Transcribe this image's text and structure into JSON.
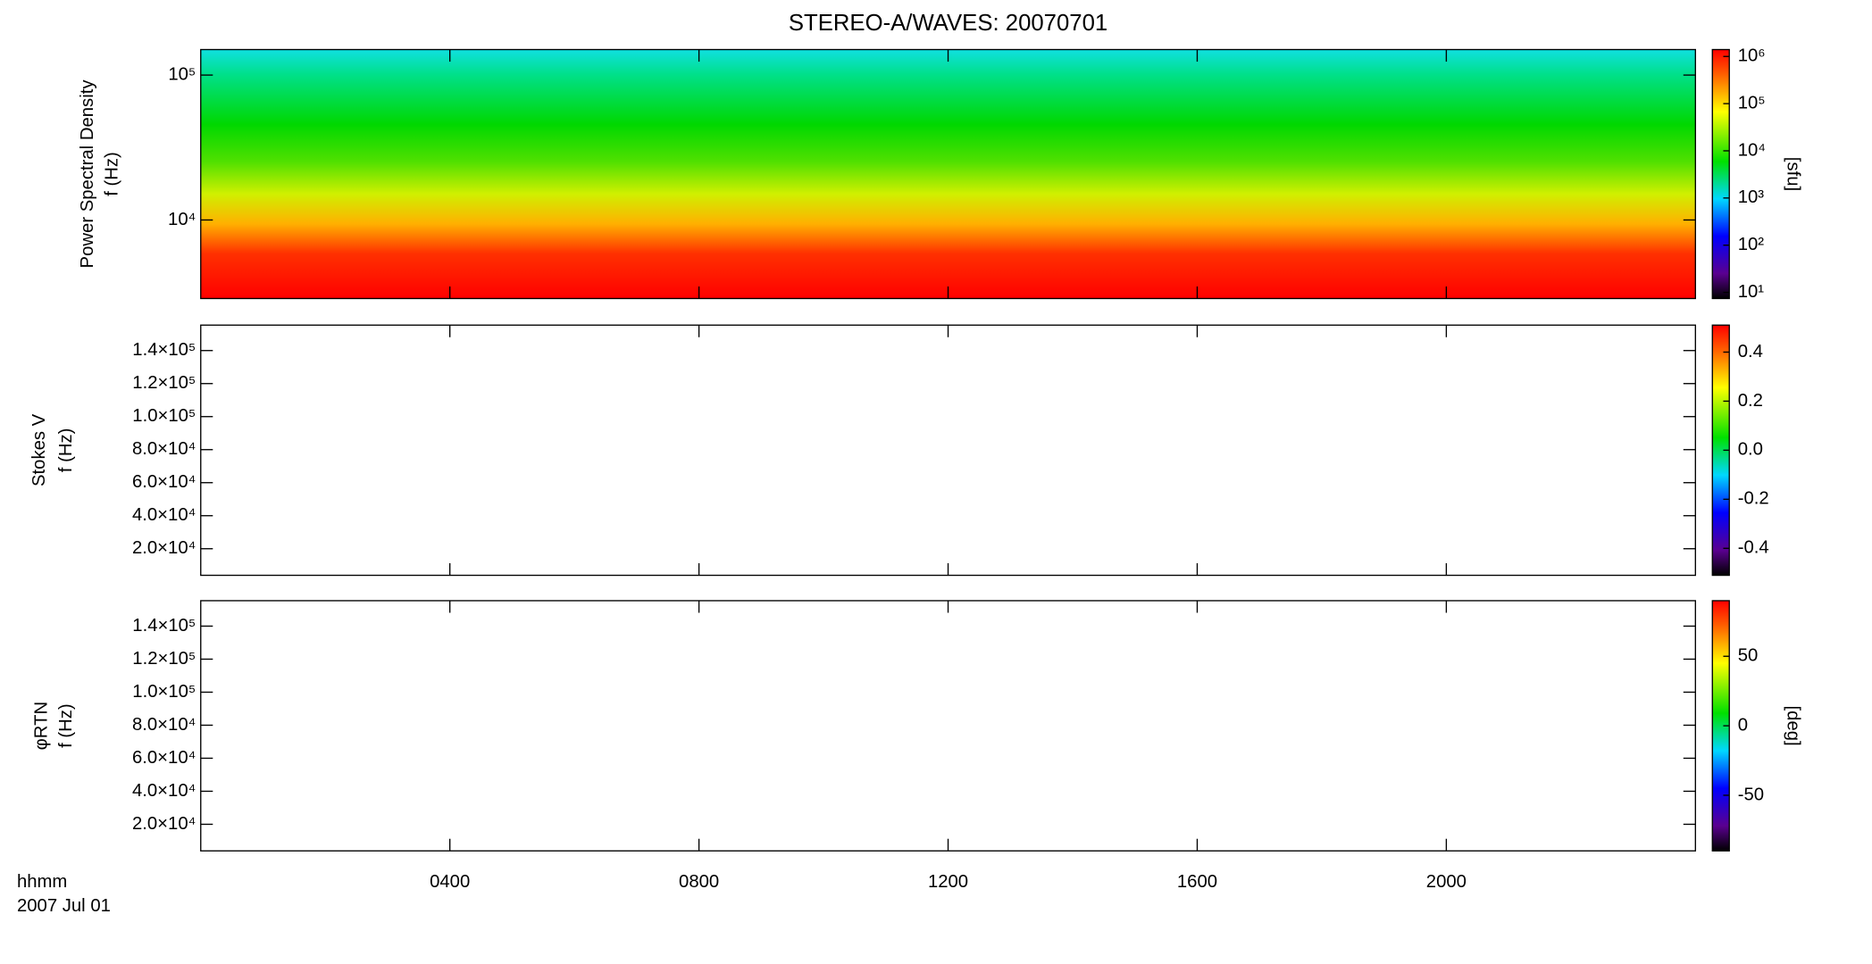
{
  "chart_data": [
    {
      "type": "spectrogram",
      "title": "STEREO-A/WAVES: 20070701",
      "y_label": [
        "Power Spectral Density",
        "f (Hz)"
      ],
      "y_log": true,
      "ylim": [
        2870,
        150000
      ],
      "yticks": [
        {
          "value": 10000,
          "label": "10⁴"
        },
        {
          "value": 100000,
          "label": "10⁵"
        }
      ],
      "colorbar": {
        "label": "[sfu]",
        "log": true,
        "lim": [
          7.4,
          1400000
        ],
        "ticks": [
          {
            "value": 10,
            "label": "10¹"
          },
          {
            "value": 100,
            "label": "10²"
          },
          {
            "value": 1000,
            "label": "10³"
          },
          {
            "value": 10000,
            "label": "10⁴"
          },
          {
            "value": 100000,
            "label": "10⁵"
          },
          {
            "value": 1000000,
            "label": "10⁶"
          }
        ]
      }
    },
    {
      "type": "spectrogram",
      "y_label": [
        "Stokes V",
        "f (Hz)"
      ],
      "y_log": false,
      "ylim": [
        3900,
        155400
      ],
      "yticks": [
        {
          "value": 20000,
          "label": "2.0×10⁴"
        },
        {
          "value": 40000,
          "label": "4.0×10⁴"
        },
        {
          "value": 60000,
          "label": "6.0×10⁴"
        },
        {
          "value": 80000,
          "label": "8.0×10⁴"
        },
        {
          "value": 100000,
          "label": "1.0×10⁵"
        },
        {
          "value": 120000,
          "label": "1.2×10⁵"
        },
        {
          "value": 140000,
          "label": "1.4×10⁵"
        }
      ],
      "colorbar": {
        "log": false,
        "lim": [
          -0.51,
          0.51
        ],
        "ticks": [
          -0.4,
          -0.2,
          {
            "value": 0,
            "label": "0.0"
          },
          0.2,
          0.4
        ]
      }
    },
    {
      "type": "spectrogram",
      "y_label": [
        "φRTN",
        "f (Hz)"
      ],
      "y_log": false,
      "ylim": [
        3900,
        155400
      ],
      "yticks": [
        {
          "value": 20000,
          "label": "2.0×10⁴"
        },
        {
          "value": 40000,
          "label": "4.0×10⁴"
        },
        {
          "value": 60000,
          "label": "6.0×10⁴"
        },
        {
          "value": 80000,
          "label": "8.0×10⁴"
        },
        {
          "value": 100000,
          "label": "1.0×10⁵"
        },
        {
          "value": 120000,
          "label": "1.2×10⁵"
        },
        {
          "value": 140000,
          "label": "1.4×10⁵"
        }
      ],
      "colorbar": {
        "label": "[deg]",
        "log": false,
        "lim": [
          -90,
          90
        ],
        "ticks": [
          -50,
          0,
          50
        ]
      },
      "x_label": [
        "hhmm",
        "2007 Jul 01"
      ],
      "xlim": [
        0,
        24
      ],
      "xticks": [
        {
          "value": 4,
          "label": "0400"
        },
        {
          "value": 8,
          "label": "0800"
        },
        {
          "value": 12,
          "label": "1200"
        },
        {
          "value": 16,
          "label": "1600"
        },
        {
          "value": 20,
          "label": "2000"
        }
      ]
    }
  ]
}
